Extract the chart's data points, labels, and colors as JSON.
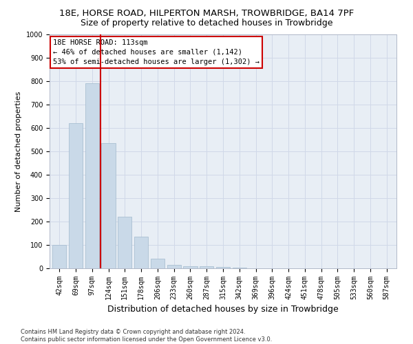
{
  "title_line1": "18E, HORSE ROAD, HILPERTON MARSH, TROWBRIDGE, BA14 7PF",
  "title_line2": "Size of property relative to detached houses in Trowbridge",
  "xlabel": "Distribution of detached houses by size in Trowbridge",
  "ylabel": "Number of detached properties",
  "bar_labels": [
    "42sqm",
    "69sqm",
    "97sqm",
    "124sqm",
    "151sqm",
    "178sqm",
    "206sqm",
    "233sqm",
    "260sqm",
    "287sqm",
    "315sqm",
    "342sqm",
    "369sqm",
    "396sqm",
    "424sqm",
    "451sqm",
    "478sqm",
    "505sqm",
    "533sqm",
    "560sqm",
    "587sqm"
  ],
  "bar_values": [
    100,
    620,
    790,
    535,
    220,
    135,
    40,
    15,
    10,
    10,
    5,
    2,
    1,
    1,
    0,
    0,
    0,
    0,
    0,
    0,
    0
  ],
  "bar_color": "#c9d9e8",
  "bar_edge_color": "#a0b8cc",
  "vline_color": "#cc0000",
  "ylim": [
    0,
    1000
  ],
  "yticks": [
    0,
    100,
    200,
    300,
    400,
    500,
    600,
    700,
    800,
    900,
    1000
  ],
  "annotation_box_text": "18E HORSE ROAD: 113sqm\n← 46% of detached houses are smaller (1,142)\n53% of semi-detached houses are larger (1,302) →",
  "annotation_box_color": "#cc0000",
  "annotation_box_fill": "#ffffff",
  "grid_color": "#d0d8e8",
  "background_color": "#e8eef5",
  "footnote": "Contains HM Land Registry data © Crown copyright and database right 2024.\nContains public sector information licensed under the Open Government Licence v3.0.",
  "title_fontsize": 9.5,
  "subtitle_fontsize": 9,
  "tick_fontsize": 7,
  "ylabel_fontsize": 8,
  "xlabel_fontsize": 9,
  "annot_fontsize": 7.5,
  "footnote_fontsize": 6
}
